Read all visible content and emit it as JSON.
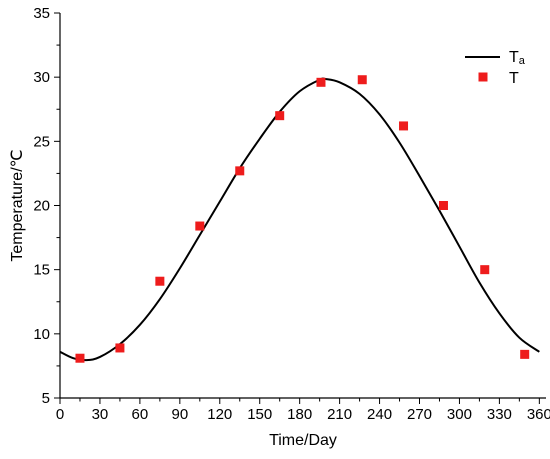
{
  "chart_data": {
    "type": "line",
    "xlabel": "Time/Day",
    "ylabel": "Temperature/℃",
    "xlim": [
      0,
      365
    ],
    "ylim": [
      5,
      35
    ],
    "xticks": [
      0,
      30,
      60,
      90,
      120,
      150,
      180,
      210,
      240,
      270,
      300,
      330,
      360
    ],
    "yticks": [
      5,
      10,
      15,
      20,
      25,
      30,
      35
    ],
    "grid": false,
    "legend_position": "top-right",
    "series": [
      {
        "name": "Ta",
        "name_main": "T",
        "name_sub": "a",
        "type": "line",
        "color": "#000000",
        "x": [
          0,
          10,
          20,
          30,
          45,
          60,
          75,
          90,
          105,
          120,
          135,
          150,
          165,
          180,
          195,
          200,
          210,
          225,
          240,
          255,
          270,
          285,
          300,
          315,
          330,
          345,
          360
        ],
        "y": [
          8.6,
          8.1,
          7.95,
          8.2,
          9.2,
          10.7,
          12.7,
          15.1,
          17.7,
          20.3,
          22.9,
          25.2,
          27.3,
          28.9,
          29.8,
          29.85,
          29.6,
          28.7,
          27.1,
          24.9,
          22.3,
          19.6,
          16.8,
          14.0,
          11.6,
          9.7,
          8.6
        ]
      },
      {
        "name": "T",
        "type": "scatter",
        "color": "#ee1c1c",
        "x": [
          15,
          45,
          75,
          105,
          135,
          165,
          196,
          227,
          258,
          288,
          319,
          349
        ],
        "y": [
          8.1,
          8.9,
          14.1,
          18.4,
          22.7,
          27.0,
          29.6,
          29.8,
          26.2,
          20.0,
          15.0,
          8.4
        ]
      }
    ]
  }
}
